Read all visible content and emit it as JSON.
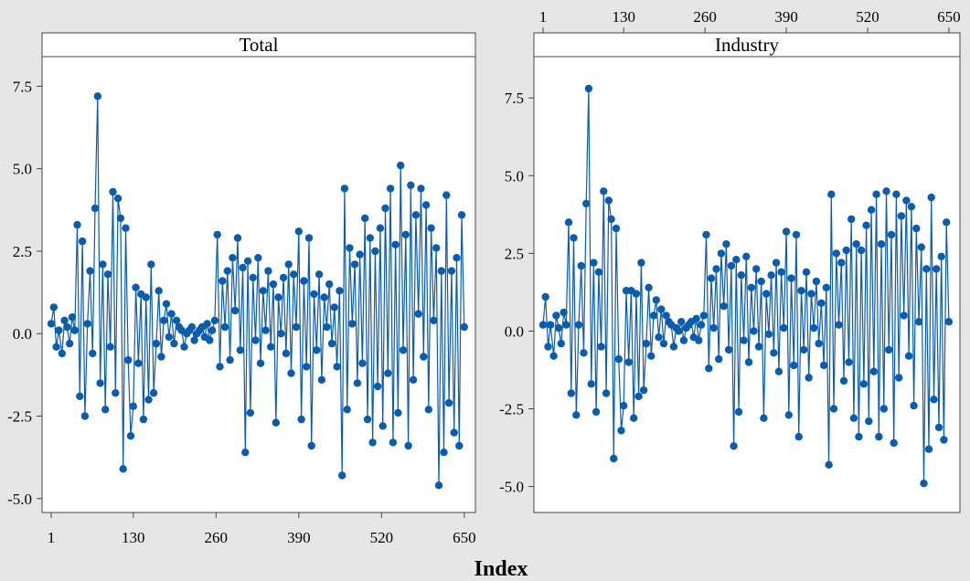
{
  "xlabel": "Index",
  "colors": {
    "background": "#e6e6e6",
    "plot_bg": "#ffffff",
    "series": "#0b5cad",
    "frame": "#444444"
  },
  "chart_data": [
    {
      "type": "line",
      "title": "Total",
      "xlabel": "Index",
      "ylabel": "",
      "xlim": [
        1,
        656
      ],
      "ylim": [
        -5.2,
        7.9
      ],
      "x_ticks": [
        1,
        130,
        260,
        390,
        520,
        650
      ],
      "y_ticks": [
        -5.0,
        -2.5,
        0.0,
        2.5,
        5.0,
        7.5
      ],
      "y_tick_labels": [
        "-5.0",
        "-2.5",
        "0.0",
        "2.5",
        "5.0",
        "7.5"
      ],
      "x_axis_position": "bottom",
      "markers": true,
      "grid": false,
      "series": [
        {
          "x": [
            1,
            5,
            9,
            13,
            18,
            22,
            26,
            30,
            34,
            38,
            42,
            46,
            50,
            54,
            58,
            62,
            66,
            70,
            74,
            78,
            82,
            86,
            90,
            94,
            98,
            102,
            106,
            110,
            114,
            118,
            122,
            126,
            130,
            134,
            138,
            142,
            146,
            150,
            154,
            158,
            162,
            166,
            170,
            174,
            178,
            182,
            186,
            190,
            194,
            198,
            202,
            206,
            210,
            214,
            218,
            222,
            226,
            230,
            234,
            238,
            242,
            246,
            250,
            254,
            258,
            262,
            266,
            270,
            274,
            278,
            282,
            286,
            290,
            294,
            298,
            302,
            306,
            310,
            314,
            318,
            322,
            326,
            330,
            334,
            338,
            342,
            346,
            350,
            354,
            358,
            362,
            366,
            370,
            374,
            378,
            382,
            386,
            390,
            394,
            398,
            402,
            406,
            410,
            414,
            418,
            422,
            426,
            430,
            434,
            438,
            442,
            446,
            450,
            454,
            458,
            462,
            466,
            470,
            474,
            478,
            482,
            486,
            490,
            494,
            498,
            502,
            506,
            510,
            514,
            518,
            522,
            526,
            530,
            534,
            538,
            542,
            546,
            550,
            554,
            558,
            562,
            566,
            570,
            574,
            578,
            582,
            586,
            590,
            594,
            598,
            602,
            606,
            610,
            614,
            618,
            622,
            626,
            630,
            634,
            638,
            642,
            646,
            650
          ],
          "y": [
            0.3,
            0.8,
            -0.4,
            0.1,
            -0.6,
            0.4,
            0.2,
            -0.3,
            0.5,
            0.1,
            3.3,
            -1.9,
            2.8,
            -2.5,
            0.3,
            1.9,
            -0.6,
            3.8,
            7.2,
            -1.5,
            2.1,
            -2.3,
            1.8,
            -0.4,
            4.3,
            -1.8,
            4.1,
            3.5,
            -4.1,
            3.2,
            -0.8,
            -3.1,
            -2.2,
            1.4,
            -0.9,
            1.2,
            -2.6,
            1.1,
            -2.0,
            2.1,
            -1.8,
            -0.3,
            1.3,
            -0.7,
            0.4,
            0.9,
            -0.1,
            0.6,
            -0.3,
            0.4,
            0.2,
            0.1,
            -0.4,
            0.0,
            0.1,
            0.2,
            -0.2,
            0.0,
            0.1,
            0.2,
            -0.1,
            0.3,
            -0.2,
            0.1,
            0.4,
            3.0,
            -1.0,
            1.6,
            0.2,
            1.9,
            -0.8,
            2.3,
            0.7,
            2.9,
            -0.5,
            2.0,
            -3.6,
            2.2,
            -2.4,
            1.7,
            -0.2,
            2.3,
            -0.9,
            1.3,
            0.1,
            1.9,
            -0.4,
            1.5,
            -2.7,
            1.1,
            0.0,
            1.7,
            -0.6,
            2.1,
            -1.2,
            1.8,
            0.2,
            3.1,
            -2.6,
            1.6,
            -1.0,
            2.9,
            -3.4,
            1.2,
            -0.5,
            1.8,
            -1.4,
            1.1,
            0.2,
            1.5,
            -0.3,
            0.8,
            -1.0,
            1.3,
            -4.3,
            4.4,
            -2.3,
            2.6,
            0.3,
            2.1,
            -1.5,
            2.4,
            -0.9,
            3.5,
            -2.6,
            2.9,
            -3.3,
            2.5,
            -1.6,
            3.2,
            -2.8,
            3.8,
            -1.2,
            4.4,
            -3.3,
            2.7,
            -2.4,
            5.1,
            -0.5,
            3.0,
            -3.4,
            4.5,
            -1.4,
            3.6,
            0.6,
            4.4,
            -0.7,
            3.9,
            -2.3,
            3.2,
            0.4,
            2.6,
            -4.6,
            1.9,
            -3.6,
            4.2,
            -2.1,
            1.9,
            -3.0,
            2.3,
            -3.4,
            3.6,
            0.2
          ]
        }
      ]
    },
    {
      "type": "line",
      "title": "Industry",
      "xlabel": "Index",
      "ylabel": "",
      "xlim": [
        1,
        656
      ],
      "ylim": [
        -5.6,
        8.3
      ],
      "x_ticks": [
        1,
        130,
        260,
        390,
        520,
        650
      ],
      "y_ticks": [
        -5.0,
        -2.5,
        0.0,
        2.5,
        5.0,
        7.5
      ],
      "y_tick_labels": [
        "-5.0",
        "-2.5",
        "0.0",
        "2.5",
        "5.0",
        "7.5"
      ],
      "x_axis_position": "top",
      "markers": true,
      "grid": false,
      "series": [
        {
          "x": [
            1,
            5,
            9,
            13,
            18,
            22,
            26,
            30,
            34,
            38,
            42,
            46,
            50,
            54,
            58,
            62,
            66,
            70,
            74,
            78,
            82,
            86,
            90,
            94,
            98,
            102,
            106,
            110,
            114,
            118,
            122,
            126,
            130,
            134,
            138,
            142,
            146,
            150,
            154,
            158,
            162,
            166,
            170,
            174,
            178,
            182,
            186,
            190,
            194,
            198,
            202,
            206,
            210,
            214,
            218,
            222,
            226,
            230,
            234,
            238,
            242,
            246,
            250,
            254,
            258,
            262,
            266,
            270,
            274,
            278,
            282,
            286,
            290,
            294,
            298,
            302,
            306,
            310,
            314,
            318,
            322,
            326,
            330,
            334,
            338,
            342,
            346,
            350,
            354,
            358,
            362,
            366,
            370,
            374,
            378,
            382,
            386,
            390,
            394,
            398,
            402,
            406,
            410,
            414,
            418,
            422,
            426,
            430,
            434,
            438,
            442,
            446,
            450,
            454,
            458,
            462,
            466,
            470,
            474,
            478,
            482,
            486,
            490,
            494,
            498,
            502,
            506,
            510,
            514,
            518,
            522,
            526,
            530,
            534,
            538,
            542,
            546,
            550,
            554,
            558,
            562,
            566,
            570,
            574,
            578,
            582,
            586,
            590,
            594,
            598,
            602,
            606,
            610,
            614,
            618,
            622,
            626,
            630,
            634,
            638,
            642,
            646,
            650
          ],
          "y": [
            0.2,
            1.1,
            -0.5,
            0.2,
            -0.8,
            0.5,
            0.1,
            -0.4,
            0.6,
            0.2,
            3.5,
            -2.0,
            3.0,
            -2.7,
            0.2,
            2.1,
            -0.7,
            4.1,
            7.8,
            -1.7,
            2.2,
            -2.6,
            1.9,
            -0.5,
            4.5,
            -2.0,
            4.2,
            3.6,
            -4.1,
            3.3,
            -0.9,
            -3.2,
            -2.4,
            1.3,
            -1.0,
            1.3,
            -2.8,
            1.2,
            -2.1,
            2.2,
            -1.9,
            -0.4,
            1.4,
            -0.8,
            0.5,
            1.0,
            -0.2,
            0.7,
            -0.4,
            0.5,
            0.3,
            0.2,
            -0.5,
            0.1,
            0.0,
            0.3,
            -0.3,
            0.1,
            0.2,
            0.3,
            -0.2,
            0.4,
            -0.3,
            0.2,
            0.5,
            3.1,
            -1.2,
            1.7,
            0.1,
            2.0,
            -0.9,
            2.5,
            0.8,
            2.8,
            -0.6,
            2.1,
            -3.7,
            2.3,
            -2.6,
            1.8,
            -0.3,
            2.4,
            -1.0,
            1.4,
            0.0,
            2.0,
            -0.5,
            1.6,
            -2.8,
            1.2,
            -0.1,
            1.8,
            -0.7,
            2.2,
            -1.3,
            1.9,
            0.1,
            3.2,
            -2.7,
            1.7,
            -1.1,
            3.1,
            -3.4,
            1.3,
            -0.6,
            1.9,
            -1.5,
            1.2,
            0.1,
            1.6,
            -0.4,
            0.9,
            -1.1,
            1.4,
            -4.3,
            4.4,
            -2.5,
            2.5,
            0.2,
            2.2,
            -1.6,
            2.6,
            -1.0,
            3.6,
            -2.8,
            2.8,
            -3.4,
            2.6,
            -1.7,
            3.4,
            -2.9,
            3.9,
            -1.3,
            4.4,
            -3.4,
            2.8,
            -2.5,
            4.5,
            -0.6,
            3.1,
            -3.6,
            4.4,
            -1.5,
            3.7,
            0.5,
            4.2,
            -0.8,
            4.0,
            -2.4,
            3.3,
            0.3,
            2.7,
            -4.9,
            2.0,
            -3.8,
            4.3,
            -2.2,
            2.0,
            -3.1,
            2.4,
            -3.5,
            3.5,
            0.3
          ]
        }
      ]
    }
  ]
}
